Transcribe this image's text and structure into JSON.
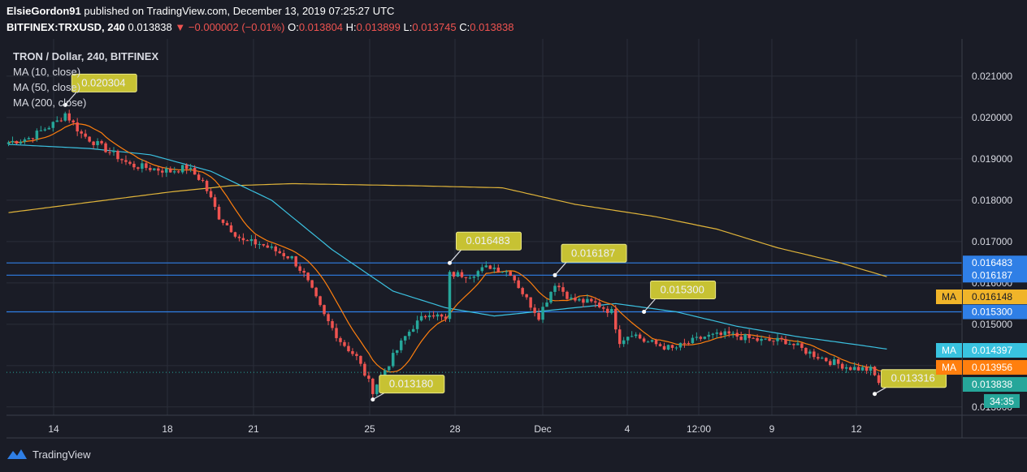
{
  "header": {
    "user": "ElsieGordon91",
    "published": "published on TradingView.com, December 13, 2019 07:25:27 UTC",
    "symbol": "BITFINEX:TRXUSD, 240",
    "last": "0.013838",
    "change": "−0.000002 (−0.01%)",
    "o_label": "O:",
    "o": "0.013804",
    "h_label": "H:",
    "h": "0.013899",
    "l_label": "L:",
    "l": "0.013745",
    "c_label": "C:",
    "c": "0.013838",
    "change_arrow_icon": "down-triangle-icon"
  },
  "legend": {
    "title": "TRON / Dollar, 240, BITFINEX",
    "ma1": "MA (10, close)",
    "ma2": "MA (50, close)",
    "ma3": "MA (200, close)"
  },
  "footer": {
    "brand": "TradingView",
    "logo_icon": "tradingview-logo-icon"
  },
  "colors": {
    "background": "#1a1c26",
    "grid": "#2a2e39",
    "up": "#26a69a",
    "down": "#ef5350",
    "ma10": "#ff7f0e",
    "ma50": "#3bc1e0",
    "ma200": "#e0b43a",
    "hline": "#2f7fe6",
    "callout": "#c7c233"
  },
  "chart_data": {
    "type": "candlestick",
    "ylim": [
      0.0128,
      0.0219
    ],
    "y_ticks": [
      "0.021000",
      "0.020000",
      "0.019000",
      "0.018000",
      "0.017000",
      "0.016000",
      "0.015000",
      "0.014000",
      "0.013000"
    ],
    "x_ticks": [
      "14",
      "18",
      "21",
      "25",
      "28",
      "Dec",
      "4",
      "12:00",
      "9",
      "12"
    ],
    "h_lines": [
      0.016483,
      0.016187,
      0.0153
    ],
    "price_labels": [
      {
        "value": 0.016483,
        "text": "0.016483",
        "kind": "hline"
      },
      {
        "value": 0.016187,
        "text": "0.016187",
        "kind": "hline"
      },
      {
        "value": 0.016148,
        "text": "0.016148",
        "kind": "ma",
        "tag": "MA"
      },
      {
        "value": 0.0153,
        "text": "0.015300",
        "kind": "hline"
      },
      {
        "value": 0.014397,
        "text": "0.014397",
        "kind": "ma50",
        "tag": "MA"
      },
      {
        "value": 0.013956,
        "text": "0.013956",
        "kind": "ma10",
        "tag": "MA"
      },
      {
        "value": 0.013838,
        "text": "0.013838",
        "kind": "last"
      }
    ],
    "countdown": "34:35",
    "callouts": [
      {
        "text": "0.020304",
        "value": 0.020304,
        "bar": 14
      },
      {
        "text": "0.016483",
        "value": 0.016483,
        "bar": 109
      },
      {
        "text": "0.016187",
        "value": 0.016187,
        "bar": 135
      },
      {
        "text": "0.015300",
        "value": 0.0153,
        "bar": 157
      },
      {
        "text": "0.013180",
        "value": 0.01318,
        "bar": 90
      },
      {
        "text": "0.013316",
        "value": 0.013316,
        "bar": 214
      }
    ],
    "close_keypoints": [
      [
        0,
        0.0194
      ],
      [
        5,
        0.0195
      ],
      [
        12,
        0.0199
      ],
      [
        14,
        0.0201
      ],
      [
        18,
        0.0196
      ],
      [
        22,
        0.01935
      ],
      [
        27,
        0.01905
      ],
      [
        30,
        0.01885
      ],
      [
        40,
        0.0187
      ],
      [
        44,
        0.0188
      ],
      [
        48,
        0.01845
      ],
      [
        52,
        0.0176
      ],
      [
        58,
        0.017
      ],
      [
        62,
        0.01695
      ],
      [
        70,
        0.0166
      ],
      [
        73,
        0.0162
      ],
      [
        78,
        0.0152
      ],
      [
        82,
        0.0146
      ],
      [
        86,
        0.0142
      ],
      [
        88,
        0.0138
      ],
      [
        90,
        0.0134
      ],
      [
        93,
        0.0139
      ],
      [
        98,
        0.0147
      ],
      [
        100,
        0.01495
      ],
      [
        104,
        0.0153
      ],
      [
        108,
        0.0151
      ],
      [
        109,
        0.0162
      ],
      [
        114,
        0.0162
      ],
      [
        119,
        0.0164
      ],
      [
        124,
        0.01625
      ],
      [
        128,
        0.0156
      ],
      [
        131,
        0.0152
      ],
      [
        135,
        0.016
      ],
      [
        139,
        0.0156
      ],
      [
        145,
        0.0155
      ],
      [
        149,
        0.0153
      ],
      [
        151,
        0.0146
      ],
      [
        154,
        0.0148
      ],
      [
        157,
        0.0146
      ],
      [
        164,
        0.0144
      ],
      [
        172,
        0.0147
      ],
      [
        178,
        0.01475
      ],
      [
        186,
        0.0146
      ],
      [
        192,
        0.0146
      ],
      [
        197,
        0.01435
      ],
      [
        203,
        0.0141
      ],
      [
        208,
        0.01395
      ],
      [
        213,
        0.0139
      ],
      [
        215,
        0.0136
      ],
      [
        217,
        0.01384
      ]
    ],
    "ma200_keypoints": [
      [
        0,
        0.0177
      ],
      [
        20,
        0.01795
      ],
      [
        40,
        0.0182
      ],
      [
        55,
        0.01835
      ],
      [
        70,
        0.0184
      ],
      [
        100,
        0.01835
      ],
      [
        122,
        0.0183
      ],
      [
        140,
        0.0179
      ],
      [
        160,
        0.0176
      ],
      [
        175,
        0.0173
      ],
      [
        190,
        0.01685
      ],
      [
        205,
        0.0165
      ],
      [
        217,
        0.01615
      ]
    ],
    "ma50_keypoints": [
      [
        0,
        0.01935
      ],
      [
        20,
        0.01925
      ],
      [
        35,
        0.0191
      ],
      [
        50,
        0.0187
      ],
      [
        65,
        0.018
      ],
      [
        80,
        0.0168
      ],
      [
        95,
        0.0158
      ],
      [
        108,
        0.0154
      ],
      [
        120,
        0.0152
      ],
      [
        135,
        0.01535
      ],
      [
        150,
        0.0155
      ],
      [
        165,
        0.0153
      ],
      [
        180,
        0.01495
      ],
      [
        195,
        0.0147
      ],
      [
        210,
        0.0145
      ],
      [
        217,
        0.0144
      ]
    ]
  }
}
